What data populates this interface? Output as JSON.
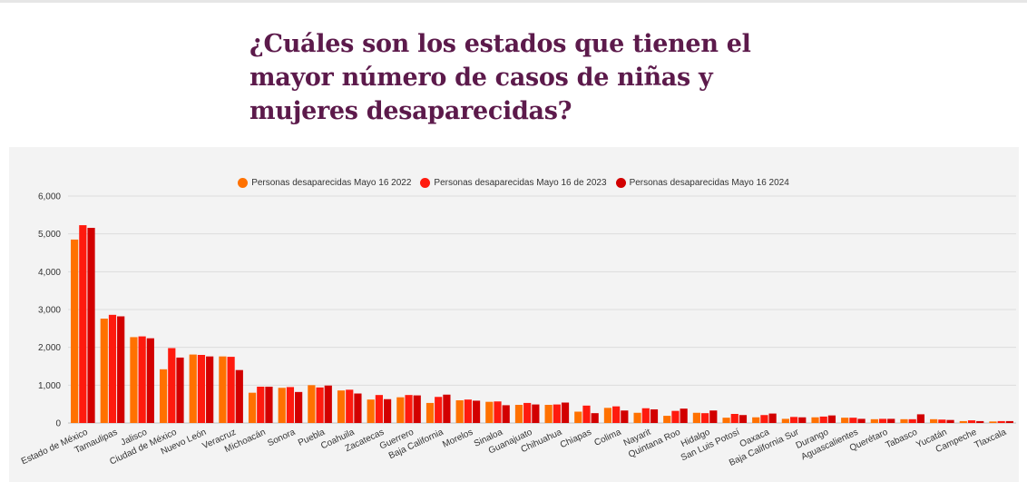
{
  "header": {
    "title": "¿Cuáles son los estados que tienen el mayor número de casos de niñas y mujeres desaparecidas?"
  },
  "chart_data": {
    "type": "bar",
    "title": "",
    "xlabel": "",
    "ylabel": "",
    "ylim": [
      0,
      6000
    ],
    "yticks": [
      "0",
      "1,000",
      "2,000",
      "3,000",
      "4,000",
      "5,000",
      "6,000"
    ],
    "legend_position": "top-center",
    "categories": [
      "Estado de México",
      "Tamaulipas",
      "Jalisco",
      "Ciudad de México",
      "Nuevo León",
      "Veracruz",
      "Michoacán",
      "Sonora",
      "Puebla",
      "Coahuila",
      "Zacatecas",
      "Guerrero",
      "Baja California",
      "Morelos",
      "Sinaloa",
      "Guanajuato",
      "Chihuahua",
      "Chiapas",
      "Colima",
      "Nayarit",
      "Quintana Roo",
      "Hidalgo",
      "San Luis Potosí",
      "Oaxaca",
      "Baja California Sur",
      "Durango",
      "Aguascalientes",
      "Querétaro",
      "Tabasco",
      "Yucatán",
      "Campeche",
      "Tlaxcala"
    ],
    "series": [
      {
        "name": "Personas desaparecidas Mayo 16 2022",
        "color": "#ff7100",
        "values": [
          4850,
          2760,
          2270,
          1420,
          1810,
          1760,
          800,
          930,
          1000,
          860,
          620,
          680,
          530,
          600,
          560,
          480,
          480,
          300,
          400,
          270,
          190,
          270,
          140,
          150,
          110,
          150,
          140,
          100,
          100,
          100,
          50,
          40
        ]
      },
      {
        "name": "Personas desaparecidas Mayo 16 de 2023",
        "color": "#ff1a0e",
        "values": [
          5230,
          2860,
          2290,
          1980,
          1800,
          1750,
          960,
          950,
          940,
          880,
          740,
          740,
          690,
          620,
          570,
          530,
          490,
          460,
          440,
          390,
          320,
          260,
          240,
          210,
          160,
          170,
          140,
          110,
          100,
          90,
          70,
          50
        ]
      },
      {
        "name": "Personas desaparecidas Mayo 16 2024",
        "color": "#d20000",
        "values": [
          5160,
          2820,
          2240,
          1730,
          1760,
          1400,
          960,
          820,
          990,
          780,
          630,
          730,
          750,
          590,
          470,
          490,
          540,
          260,
          330,
          360,
          380,
          330,
          210,
          250,
          150,
          200,
          110,
          110,
          230,
          80,
          50,
          50
        ]
      }
    ]
  }
}
